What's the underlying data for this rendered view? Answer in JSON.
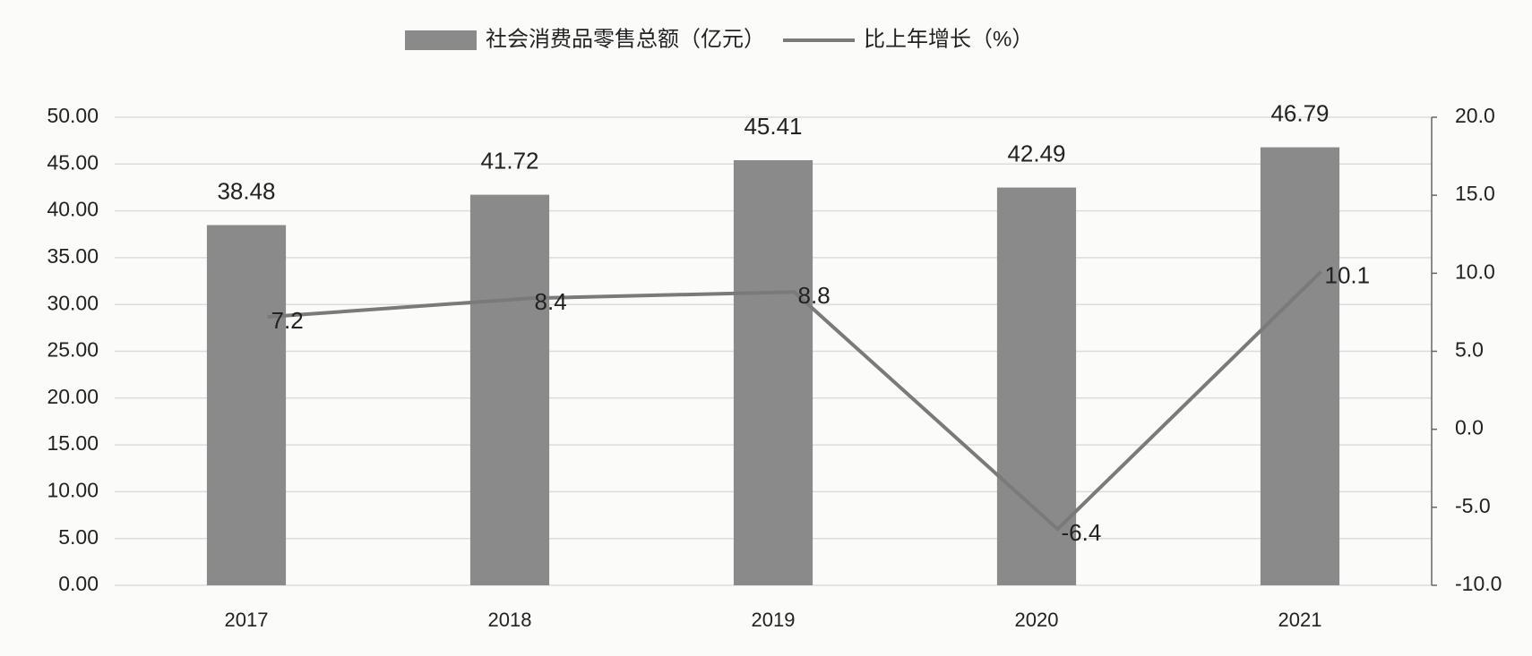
{
  "chart_data": {
    "type": "combo",
    "categories": [
      "2017",
      "2018",
      "2019",
      "2020",
      "2021"
    ],
    "series": [
      {
        "name": "社会消费品零售总额（亿元）",
        "type": "bar",
        "color": "#8a8a8a",
        "values": [
          38.48,
          41.72,
          45.41,
          42.49,
          46.79
        ]
      },
      {
        "name": "比上年增长（%）",
        "type": "line",
        "axis": "y2",
        "color": "#7a7a7a",
        "values": [
          7.2,
          8.4,
          8.8,
          -6.4,
          10.1
        ]
      }
    ],
    "ylim": [
      0,
      50
    ],
    "yticks": [
      {
        "value": 0,
        "label": "0.00"
      },
      {
        "value": 5,
        "label": "5.00"
      },
      {
        "value": 10,
        "label": "10.00"
      },
      {
        "value": 15,
        "label": "15.00"
      },
      {
        "value": 20,
        "label": "20.00"
      },
      {
        "value": 25,
        "label": "25.00"
      },
      {
        "value": 30,
        "label": "30.00"
      },
      {
        "value": 35,
        "label": "35.00"
      },
      {
        "value": 40,
        "label": "40.00"
      },
      {
        "value": 45,
        "label": "45.00"
      },
      {
        "value": 50,
        "label": "50.00"
      }
    ],
    "y2lim": [
      -10,
      20
    ],
    "y2ticks": [
      {
        "value": -10,
        "label": "-10.0"
      },
      {
        "value": -5,
        "label": "-5.0"
      },
      {
        "value": 0,
        "label": "0.0"
      },
      {
        "value": 5,
        "label": "5.0"
      },
      {
        "value": 10,
        "label": "10.0"
      },
      {
        "value": 15,
        "label": "15.0"
      },
      {
        "value": 20,
        "label": "20.0"
      }
    ],
    "grid": true,
    "legend": "top"
  }
}
